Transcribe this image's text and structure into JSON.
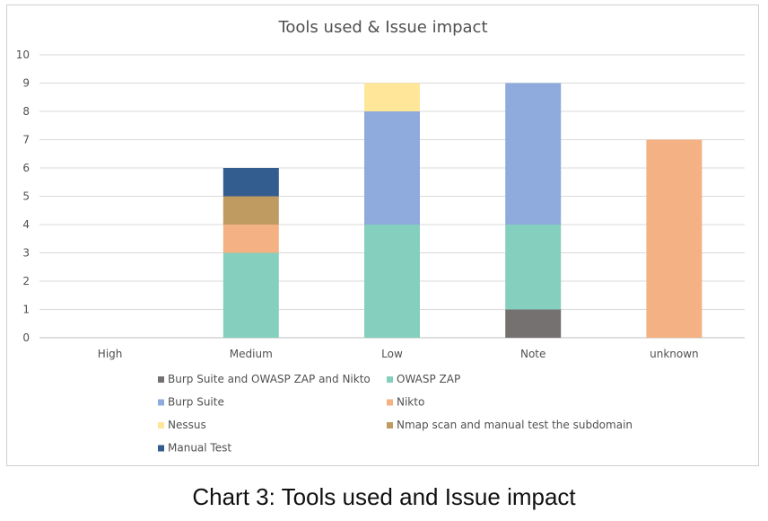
{
  "caption": "Chart 3: Tools used and Issue impact",
  "chart_data": {
    "type": "bar",
    "stacked": true,
    "title": "Tools used & Issue impact",
    "xlabel": "",
    "ylabel": "",
    "categories": [
      "High",
      "Medium",
      "Low",
      "Note",
      "unknown"
    ],
    "ylim": [
      0,
      10
    ],
    "yticks": [
      0,
      1,
      2,
      3,
      4,
      5,
      6,
      7,
      8,
      9,
      10
    ],
    "grid": true,
    "legend_position": "bottom",
    "series": [
      {
        "name": "Burp Suite and OWASP ZAP and Nikto",
        "color": "#767171",
        "values": [
          0,
          0,
          0,
          1,
          0
        ]
      },
      {
        "name": "OWASP ZAP",
        "color": "#85CFBE",
        "values": [
          0,
          3,
          4,
          3,
          0
        ]
      },
      {
        "name": "Burp Suite",
        "color": "#8FAADC",
        "values": [
          0,
          0,
          4,
          5,
          0
        ]
      },
      {
        "name": "Nikto",
        "color": "#F4B183",
        "values": [
          0,
          1,
          0,
          0,
          7
        ]
      },
      {
        "name": "Nessus",
        "color": "#FFE699",
        "values": [
          0,
          0,
          1,
          0,
          0
        ]
      },
      {
        "name": "Nmap scan and manual test the subdomain",
        "color": "#BF9B61",
        "values": [
          0,
          1,
          0,
          0,
          0
        ]
      },
      {
        "name": "Manual Test",
        "color": "#335C8F",
        "values": [
          0,
          1,
          0,
          0,
          0
        ]
      }
    ]
  }
}
